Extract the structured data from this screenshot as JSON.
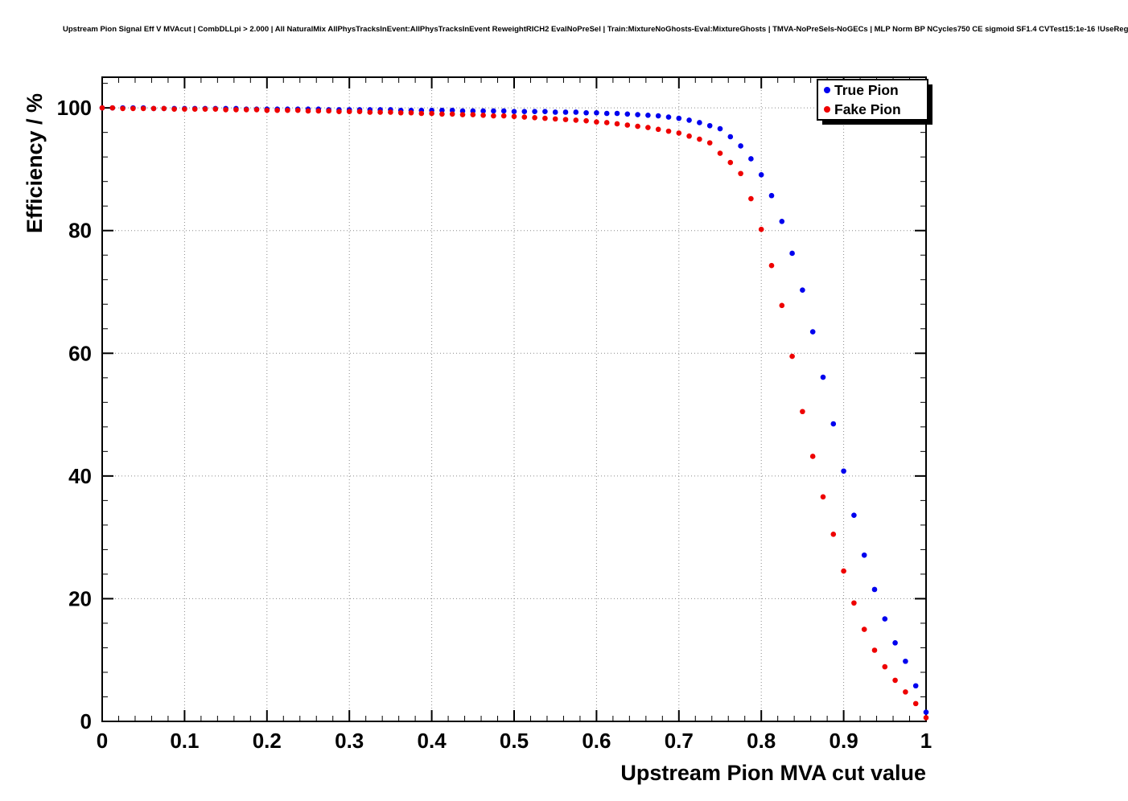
{
  "header": {
    "title": "Upstream Pion Signal Eff V MVAcut | CombDLLpi > 2.000 | All NaturalMix AllPhysTracksInEvent:AllPhysTracksInEvent ReweightRICH2 EvalNoPreSel | Train:MixtureNoGhosts-Eval:MixtureGhosts | TMVA-NoPreSels-NoGECs | MLP Norm BP NCycles750 CE sigmoid SF1.4 CVTest15:1e-16 !UseReg"
  },
  "chart_data": {
    "type": "scatter",
    "title": "Upstream Pion Signal Eff V MVAcut | CombDLLpi > 2.000 | All NaturalMix AllPhysTracksInEvent:AllPhysTracksInEvent ReweightRICH2 EvalNoPreSel | Train:MixtureNoGhosts-Eval:MixtureGhosts | TMVA-NoPreSels-NoGECs | MLP Norm BP NCycles750 CE sigmoid SF1.4 CVTest15:1e-16 !UseReg",
    "xlabel": "Upstream Pion MVA cut value",
    "ylabel": "Efficiency / %",
    "xlim": [
      0,
      1
    ],
    "ylim": [
      0,
      105
    ],
    "grid": true,
    "legend_position": "top-right",
    "marker_style": "filled-circle",
    "x_ticks": [
      0,
      0.1,
      0.2,
      0.3,
      0.4,
      0.5,
      0.6,
      0.7,
      0.8,
      0.9,
      1
    ],
    "x_tick_labels": [
      "0",
      "0.1",
      "0.2",
      "0.3",
      "0.4",
      "0.5",
      "0.6",
      "0.7",
      "0.8",
      "0.9",
      "1"
    ],
    "y_ticks": [
      0,
      20,
      40,
      60,
      80,
      100
    ],
    "y_tick_labels": [
      "0",
      "20",
      "40",
      "60",
      "80",
      "100"
    ],
    "x_minor_step": 0.02,
    "y_minor_step": 4,
    "x": [
      0,
      0.0125,
      0.025,
      0.0375,
      0.05,
      0.0625,
      0.075,
      0.0875,
      0.1,
      0.1125,
      0.125,
      0.1375,
      0.15,
      0.1625,
      0.175,
      0.1875,
      0.2,
      0.2125,
      0.225,
      0.2375,
      0.25,
      0.2625,
      0.275,
      0.2875,
      0.3,
      0.3125,
      0.325,
      0.3375,
      0.35,
      0.3625,
      0.375,
      0.3875,
      0.4,
      0.4125,
      0.425,
      0.4375,
      0.45,
      0.4625,
      0.475,
      0.4875,
      0.5,
      0.5125,
      0.525,
      0.5375,
      0.55,
      0.5625,
      0.575,
      0.5875,
      0.6,
      0.6125,
      0.625,
      0.6375,
      0.65,
      0.6625,
      0.675,
      0.6875,
      0.7,
      0.7125,
      0.725,
      0.7375,
      0.75,
      0.7625,
      0.775,
      0.7875,
      0.8,
      0.8125,
      0.825,
      0.8375,
      0.85,
      0.8625,
      0.875,
      0.8875,
      0.9,
      0.9125,
      0.925,
      0.9375,
      0.95,
      0.9625,
      0.975,
      0.9875,
      1
    ],
    "series": [
      {
        "name": "True Pion",
        "color": "#0000ee",
        "values": [
          100,
          100,
          100,
          100,
          100,
          99.9,
          99.9,
          99.9,
          99.9,
          99.9,
          99.9,
          99.9,
          99.9,
          99.9,
          99.8,
          99.8,
          99.8,
          99.8,
          99.8,
          99.8,
          99.8,
          99.8,
          99.7,
          99.7,
          99.7,
          99.7,
          99.7,
          99.7,
          99.7,
          99.6,
          99.6,
          99.6,
          99.6,
          99.6,
          99.6,
          99.5,
          99.5,
          99.5,
          99.5,
          99.5,
          99.4,
          99.4,
          99.4,
          99.4,
          99.3,
          99.3,
          99.3,
          99.2,
          99.2,
          99.1,
          99.1,
          99.0,
          98.9,
          98.8,
          98.7,
          98.5,
          98.3,
          98.0,
          97.6,
          97.1,
          96.6,
          95.3,
          93.8,
          91.7,
          89.1,
          85.7,
          81.5,
          76.3,
          70.3,
          63.5,
          56.1,
          48.5,
          40.8,
          33.6,
          27.1,
          21.5,
          16.7,
          12.8,
          9.8,
          5.8,
          1.5
        ]
      },
      {
        "name": "Fake Pion",
        "color": "#ee0000",
        "values": [
          100,
          100,
          99.9,
          99.9,
          99.9,
          99.9,
          99.9,
          99.8,
          99.8,
          99.8,
          99.8,
          99.8,
          99.7,
          99.7,
          99.7,
          99.7,
          99.6,
          99.6,
          99.6,
          99.6,
          99.5,
          99.5,
          99.5,
          99.4,
          99.4,
          99.4,
          99.3,
          99.3,
          99.3,
          99.2,
          99.2,
          99.1,
          99.1,
          99.0,
          99.0,
          98.9,
          98.9,
          98.8,
          98.7,
          98.7,
          98.6,
          98.5,
          98.4,
          98.3,
          98.2,
          98.1,
          98.0,
          97.9,
          97.7,
          97.6,
          97.4,
          97.2,
          97.0,
          96.8,
          96.5,
          96.2,
          95.9,
          95.4,
          94.9,
          94.3,
          92.6,
          91.1,
          89.3,
          85.2,
          80.2,
          74.3,
          67.8,
          59.5,
          50.5,
          43.2,
          36.6,
          30.5,
          24.5,
          19.3,
          15.0,
          11.6,
          8.9,
          6.7,
          4.8,
          2.9,
          0.6
        ]
      }
    ]
  }
}
